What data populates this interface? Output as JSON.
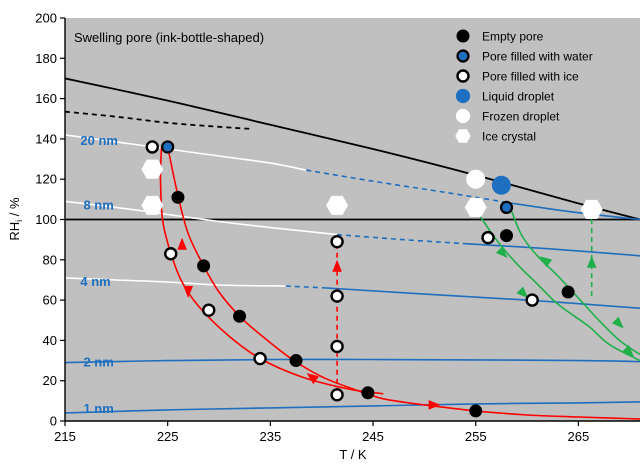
{
  "chart_data": {
    "type": "scatter",
    "title": "Swelling pore (ink-bottle-shaped)",
    "xlabel": "T / K",
    "ylabel": "RH",
    "ylabel_sub": "i",
    "ylabel_unit": " / %",
    "xlim": [
      215,
      271
    ],
    "ylim": [
      0,
      200
    ],
    "xticks": [
      215,
      225,
      235,
      245,
      255,
      265
    ],
    "yticks": [
      0,
      20,
      40,
      60,
      80,
      100,
      120,
      140,
      160,
      180,
      200
    ],
    "grid": false,
    "legend_position": "top-right",
    "colors": {
      "plot_bg": "#c0c0c0",
      "blue": "#1e6fc0",
      "red": "#ff0000",
      "green": "#1fb04a",
      "black": "#000000",
      "white": "#ffffff"
    },
    "legend": [
      {
        "label": "Empty pore",
        "marker": "empty"
      },
      {
        "label": "Pore filled with water",
        "marker": "water"
      },
      {
        "label": "Pore filled with ice",
        "marker": "ice"
      },
      {
        "label": "Liquid droplet",
        "marker": "liquid"
      },
      {
        "label": "Frozen droplet",
        "marker": "frozen"
      },
      {
        "label": "Ice crystal",
        "marker": "crystal"
      }
    ],
    "pore_labels": [
      {
        "label": "20 nm",
        "x": 216.5,
        "y": 139
      },
      {
        "label": "8 nm",
        "x": 216.8,
        "y": 107
      },
      {
        "label": "4 nm",
        "x": 216.5,
        "y": 69
      },
      {
        "label": "2 nm",
        "x": 216.8,
        "y": 29
      },
      {
        "label": "1 nm",
        "x": 216.8,
        "y": 6
      }
    ],
    "curves": [
      {
        "name": "black-solid",
        "color": "black",
        "dash": false,
        "points": [
          [
            215,
            170
          ],
          [
            225,
            159
          ],
          [
            235,
            147
          ],
          [
            245,
            135
          ],
          [
            255,
            122
          ],
          [
            265,
            108
          ],
          [
            271,
            100
          ]
        ]
      },
      {
        "name": "black-dashed",
        "color": "black",
        "dash": true,
        "points": [
          [
            215,
            153.5
          ],
          [
            220,
            151
          ],
          [
            225,
            148
          ],
          [
            230,
            146
          ],
          [
            233,
            145
          ]
        ]
      },
      {
        "name": "h100",
        "color": "black",
        "dash": false,
        "points": [
          [
            215,
            100
          ],
          [
            271,
            100
          ]
        ]
      },
      {
        "name": "20nm-white",
        "color": "white",
        "dash": false,
        "points": [
          [
            215,
            142
          ],
          [
            220,
            138.5
          ],
          [
            225,
            135
          ],
          [
            230,
            131.5
          ],
          [
            235,
            128
          ],
          [
            238.5,
            124.5
          ]
        ]
      },
      {
        "name": "20nm-dash",
        "color": "blue",
        "dash": true,
        "points": [
          [
            238.5,
            124.5
          ],
          [
            245,
            119
          ],
          [
            252,
            113.5
          ],
          [
            258,
            108.5
          ]
        ]
      },
      {
        "name": "20nm-solid",
        "color": "blue",
        "dash": false,
        "points": [
          [
            258,
            108.5
          ],
          [
            264,
            104
          ],
          [
            271,
            100
          ]
        ]
      },
      {
        "name": "8nm-white",
        "color": "white",
        "dash": false,
        "points": [
          [
            215,
            109
          ],
          [
            220,
            106
          ],
          [
            225,
            102.5
          ],
          [
            230,
            99
          ],
          [
            235,
            96
          ],
          [
            241.5,
            92.5
          ]
        ]
      },
      {
        "name": "8nm-dash",
        "color": "blue",
        "dash": true,
        "points": [
          [
            241.5,
            92.5
          ],
          [
            248,
            90
          ],
          [
            254,
            88
          ]
        ]
      },
      {
        "name": "8nm-solid",
        "color": "blue",
        "dash": false,
        "points": [
          [
            254,
            88
          ],
          [
            262,
            85.5
          ],
          [
            271,
            82
          ]
        ]
      },
      {
        "name": "4nm-white",
        "color": "white",
        "dash": false,
        "points": [
          [
            215,
            71
          ],
          [
            220,
            70
          ],
          [
            225,
            69
          ],
          [
            230,
            67.5
          ],
          [
            236.5,
            67
          ]
        ]
      },
      {
        "name": "4nm-dash",
        "color": "blue",
        "dash": true,
        "points": [
          [
            236.5,
            67
          ],
          [
            238.5,
            66.5
          ],
          [
            240.5,
            66
          ]
        ]
      },
      {
        "name": "4nm-solid",
        "color": "blue",
        "dash": false,
        "points": [
          [
            240.5,
            66
          ],
          [
            250,
            63
          ],
          [
            260,
            60
          ],
          [
            271,
            56
          ]
        ]
      },
      {
        "name": "2nm",
        "color": "blue",
        "dash": false,
        "points": [
          [
            215,
            29
          ],
          [
            225,
            30
          ],
          [
            235,
            30.5
          ],
          [
            245,
            30.5
          ],
          [
            255,
            30.3
          ],
          [
            265,
            30
          ],
          [
            271,
            29.5
          ]
        ]
      },
      {
        "name": "1nm",
        "color": "blue",
        "dash": false,
        "points": [
          [
            215,
            4
          ],
          [
            225,
            5.5
          ],
          [
            235,
            6.5
          ],
          [
            245,
            7.5
          ],
          [
            255,
            8.5
          ],
          [
            265,
            9
          ],
          [
            271,
            9.5
          ]
        ]
      },
      {
        "name": "red-cooling",
        "color": "red",
        "dash": false,
        "points": [
          [
            225,
            136
          ],
          [
            226,
            112
          ],
          [
            227,
            93
          ],
          [
            228.5,
            77
          ],
          [
            230,
            64
          ],
          [
            232,
            52
          ],
          [
            234,
            43
          ],
          [
            237,
            31
          ],
          [
            240,
            22
          ],
          [
            243,
            16
          ],
          [
            246,
            11
          ],
          [
            250,
            8
          ]
        ]
      },
      {
        "name": "red-warming",
        "color": "red",
        "dash": false,
        "points": [
          [
            250,
            8
          ],
          [
            255,
            5
          ],
          [
            260,
            3
          ],
          [
            265,
            2
          ],
          [
            271,
            1
          ]
        ]
      },
      {
        "name": "red-left",
        "color": "red",
        "dash": false,
        "points": [
          [
            224.4,
            136
          ],
          [
            224.3,
            120
          ],
          [
            224.5,
            100
          ],
          [
            225.2,
            85
          ],
          [
            226.3,
            70
          ],
          [
            228,
            57
          ],
          [
            231,
            42
          ],
          [
            234,
            31
          ],
          [
            238,
            22
          ],
          [
            242.5,
            16
          ],
          [
            246,
            13.5
          ]
        ]
      },
      {
        "name": "red-vertical",
        "color": "red",
        "dash": true,
        "points": [
          [
            241.5,
            14
          ],
          [
            241.5,
            90
          ]
        ]
      },
      {
        "name": "green-left",
        "color": "green",
        "dash": false,
        "points": [
          [
            255,
            105
          ],
          [
            257,
            90
          ],
          [
            259,
            78
          ],
          [
            261,
            68
          ],
          [
            263,
            58
          ],
          [
            266,
            47
          ],
          [
            268,
            38
          ],
          [
            271,
            30
          ]
        ]
      },
      {
        "name": "green-right",
        "color": "green",
        "dash": false,
        "points": [
          [
            258.5,
            104
          ],
          [
            259.5,
            92
          ],
          [
            261,
            82
          ],
          [
            263,
            72
          ],
          [
            265,
            61
          ],
          [
            267,
            50
          ],
          [
            269,
            40
          ],
          [
            271,
            33
          ]
        ]
      },
      {
        "name": "green-vertical",
        "color": "green",
        "dash": true,
        "points": [
          [
            266.3,
            62
          ],
          [
            266.3,
            104
          ]
        ]
      }
    ],
    "arrows": [
      {
        "color": "red",
        "x": 226.4,
        "y": 88,
        "dir": "up"
      },
      {
        "color": "red",
        "x": 227,
        "y": 64,
        "dir": "down"
      },
      {
        "color": "red",
        "x": 239,
        "y": 22,
        "dir": "up-left"
      },
      {
        "color": "red",
        "x": 251,
        "y": 8,
        "dir": "right"
      },
      {
        "color": "red",
        "x": 241.5,
        "y": 77,
        "dir": "up"
      },
      {
        "color": "green",
        "x": 257.7,
        "y": 83,
        "dir": "down-right"
      },
      {
        "color": "green",
        "x": 259.7,
        "y": 63,
        "dir": "down-right"
      },
      {
        "color": "green",
        "x": 261.7,
        "y": 80,
        "dir": "up-left"
      },
      {
        "color": "green",
        "x": 266.3,
        "y": 79,
        "dir": "up"
      },
      {
        "color": "green",
        "x": 270,
        "y": 34,
        "dir": "down-right"
      },
      {
        "color": "green",
        "x": 269,
        "y": 48,
        "dir": "down-right"
      }
    ],
    "series": [
      {
        "name": "Empty pore",
        "marker": "empty",
        "points": [
          [
            226,
            111
          ],
          [
            228.5,
            77
          ],
          [
            232,
            52
          ],
          [
            237.5,
            30
          ],
          [
            244.5,
            14
          ],
          [
            255,
            5
          ],
          [
            258,
            92
          ],
          [
            260.5,
            60
          ],
          [
            264,
            64
          ]
        ]
      },
      {
        "name": "Pore filled with water",
        "marker": "water",
        "points": [
          [
            225,
            136
          ],
          [
            258,
            106
          ]
        ]
      },
      {
        "name": "Pore filled with ice",
        "marker": "ice",
        "points": [
          [
            223.5,
            136
          ],
          [
            225.3,
            83
          ],
          [
            229,
            55
          ],
          [
            234,
            31
          ],
          [
            241.5,
            89
          ],
          [
            241.5,
            62
          ],
          [
            241.5,
            37
          ],
          [
            241.5,
            13
          ],
          [
            256.2,
            91
          ],
          [
            260.5,
            60
          ]
        ]
      },
      {
        "name": "Liquid droplet",
        "marker": "liquid",
        "points": [
          [
            257.5,
            117
          ]
        ]
      },
      {
        "name": "Frozen droplet",
        "marker": "frozen",
        "points": [
          [
            255,
            120
          ]
        ]
      },
      {
        "name": "Ice crystal",
        "marker": "crystal",
        "points": [
          [
            223.5,
            125
          ],
          [
            223.5,
            107
          ],
          [
            241.5,
            107
          ],
          [
            255,
            106
          ],
          [
            266.3,
            105
          ]
        ]
      }
    ]
  }
}
